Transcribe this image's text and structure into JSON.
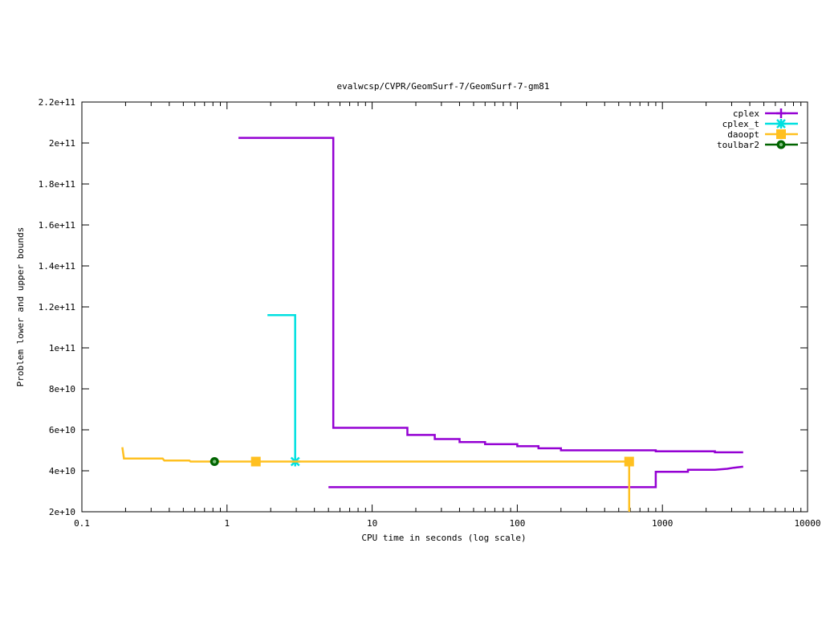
{
  "chart_data": {
    "type": "line",
    "title": "evalwcsp/CVPR/GeomSurf-7/GeomSurf-7-gm81",
    "xlabel": "CPU time in seconds (log scale)",
    "ylabel": "Problem lower and upper bounds",
    "xscale": "log",
    "xlim": [
      0.1,
      10000
    ],
    "ylim": [
      20000000000.0,
      220000000000.0
    ],
    "grid": false,
    "legend_position": "top-right",
    "x_ticks": [
      {
        "value": 0.1,
        "label": "0.1"
      },
      {
        "value": 1,
        "label": "1"
      },
      {
        "value": 10,
        "label": "10"
      },
      {
        "value": 100,
        "label": "100"
      },
      {
        "value": 1000,
        "label": "1000"
      },
      {
        "value": 10000,
        "label": "10000"
      }
    ],
    "y_ticks": [
      {
        "value": 20000000000.0,
        "label": "2e+10"
      },
      {
        "value": 40000000000.0,
        "label": "4e+10"
      },
      {
        "value": 60000000000.0,
        "label": "6e+10"
      },
      {
        "value": 80000000000.0,
        "label": "8e+10"
      },
      {
        "value": 100000000000.0,
        "label": "1e+11"
      },
      {
        "value": 120000000000.0,
        "label": "1.2e+11"
      },
      {
        "value": 140000000000.0,
        "label": "1.4e+11"
      },
      {
        "value": 160000000000.0,
        "label": "1.6e+11"
      },
      {
        "value": 180000000000.0,
        "label": "1.8e+11"
      },
      {
        "value": 200000000000.0,
        "label": "2e+11"
      },
      {
        "value": 220000000000.0,
        "label": "2.2e+11"
      }
    ],
    "series": [
      {
        "name": "cplex",
        "color": "#9400d3",
        "marker": "plus",
        "lines": [
          [
            [
              1.2,
              202500000000.0
            ],
            [
              5.4,
              202500000000.0
            ],
            [
              5.4,
              61000000000.0
            ],
            [
              17.5,
              61000000000.0
            ],
            [
              17.5,
              57500000000.0
            ],
            [
              27,
              57500000000.0
            ],
            [
              27,
              55500000000.0
            ],
            [
              40,
              55500000000.0
            ],
            [
              40,
              54000000000.0
            ],
            [
              60,
              54000000000.0
            ],
            [
              60,
              53000000000.0
            ],
            [
              100,
              53000000000.0
            ],
            [
              100,
              52000000000.0
            ],
            [
              140,
              52000000000.0
            ],
            [
              140,
              51000000000.0
            ],
            [
              200,
              51000000000.0
            ],
            [
              200,
              50000000000.0
            ],
            [
              900,
              50000000000.0
            ],
            [
              900,
              49500000000.0
            ],
            [
              2300,
              49500000000.0
            ],
            [
              2300,
              49000000000.0
            ],
            [
              3600,
              49000000000.0
            ]
          ],
          [
            [
              5,
              32000000000.0
            ],
            [
              900,
              32000000000.0
            ],
            [
              900,
              39500000000.0
            ],
            [
              1500,
              39500000000.0
            ],
            [
              1500,
              40500000000.0
            ],
            [
              2300,
              40500000000.0
            ],
            [
              2800,
              41000000000.0
            ],
            [
              3100,
              41500000000.0
            ],
            [
              3600,
              42000000000.0
            ]
          ]
        ],
        "markers": []
      },
      {
        "name": "cplex_t",
        "color": "#00e0e0",
        "marker": "star",
        "lines": [
          [
            [
              1.9,
              116000000000.0
            ],
            [
              2.95,
              116000000000.0
            ],
            [
              2.95,
              44500000000.0
            ]
          ]
        ],
        "markers": [
          [
            2.95,
            44500000000.0
          ]
        ]
      },
      {
        "name": "daoopt",
        "color": "#ffc020",
        "marker": "square",
        "lines": [
          [
            [
              0.19,
              51500000000.0
            ],
            [
              0.195,
              46000000000.0
            ],
            [
              0.36,
              46000000000.0
            ],
            [
              0.37,
              45000000000.0
            ],
            [
              0.55,
              45000000000.0
            ],
            [
              0.56,
              44500000000.0
            ],
            [
              590,
              44500000000.0
            ],
            [
              590,
              20000000000.0
            ]
          ]
        ],
        "markers": [
          [
            1.58,
            44500000000.0
          ],
          [
            590,
            44500000000.0
          ]
        ]
      },
      {
        "name": "toulbar2",
        "color": "#006400",
        "marker": "circle",
        "lines": [],
        "markers": [
          [
            0.82,
            44500000000.0
          ]
        ]
      }
    ]
  }
}
